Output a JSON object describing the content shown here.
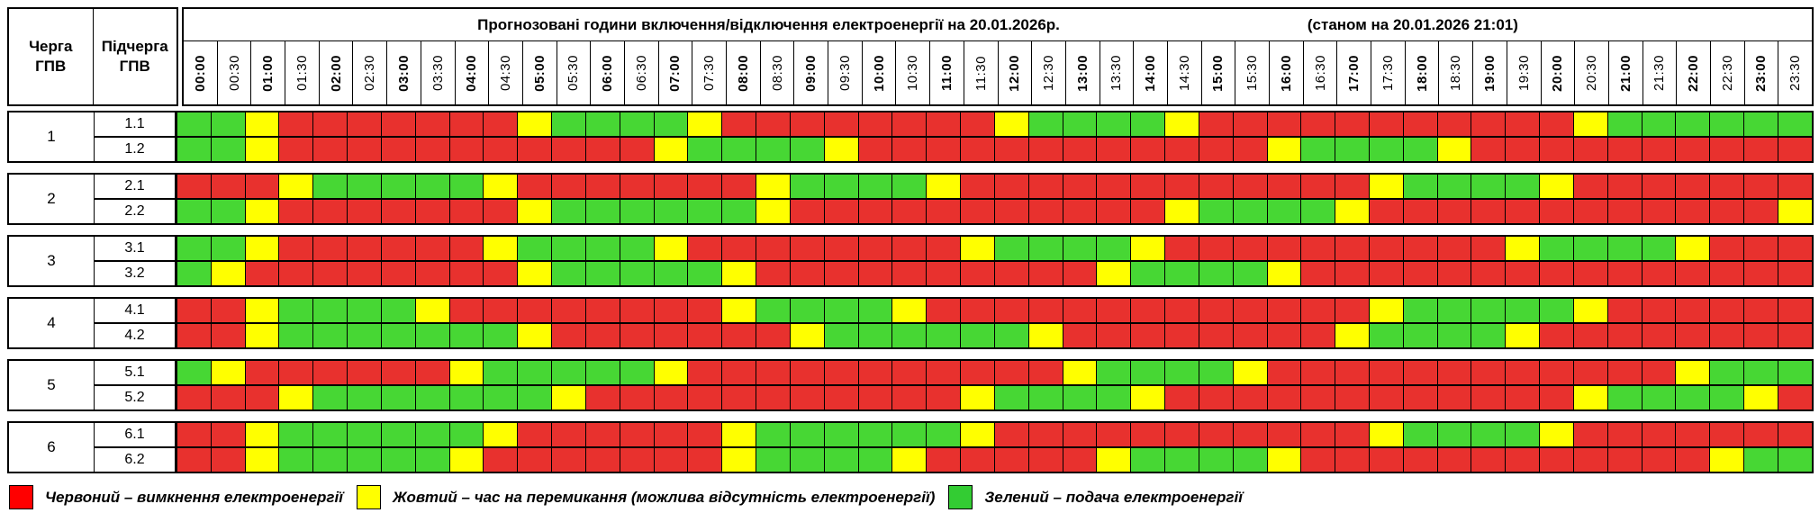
{
  "header": {
    "title": "Прогнозовані години включення/відключення електроенергії на 20.01.2026р.",
    "status_note": "(станом на 20.01.2026 21:01)",
    "corner_col1": "Черга\nГПВ",
    "corner_col2": "Підчерга\nГПВ"
  },
  "times": [
    "00:00",
    "00:30",
    "01:00",
    "01:30",
    "02:00",
    "02:30",
    "03:00",
    "03:30",
    "04:00",
    "04:30",
    "05:00",
    "05:30",
    "06:00",
    "06:30",
    "07:00",
    "07:30",
    "08:00",
    "08:30",
    "09:00",
    "09:30",
    "10:00",
    "10:30",
    "11:00",
    "11:30",
    "12:00",
    "12:30",
    "13:00",
    "13:30",
    "14:00",
    "14:30",
    "15:00",
    "15:30",
    "16:00",
    "16:30",
    "17:00",
    "17:30",
    "18:00",
    "18:30",
    "19:00",
    "19:30",
    "20:00",
    "20:30",
    "21:00",
    "21:30",
    "22:00",
    "22:30",
    "23:00",
    "23:30"
  ],
  "colors": {
    "R": "#e8312e",
    "Y": "#ffff00",
    "G": "#47d734"
  },
  "groups": [
    {
      "queue": "1",
      "rows": [
        {
          "label": "1.1",
          "slots": "GGYRRRRRRRYGGGGYRRRRRRRRYGGGGYRRRRRRRRRRRYGGGGGG"
        },
        {
          "label": "1.2",
          "slots": "GGYRRRRRRRRRRRYGGGGYRRRRRRRRRRRRYGGGGYRRRRRRRRRR"
        }
      ]
    },
    {
      "queue": "2",
      "rows": [
        {
          "label": "2.1",
          "slots": "RRRYGGGGGYRRRRRRRYGGGGYRRRRRRRRRRRRYGGGGYRRRRRRR"
        },
        {
          "label": "2.2",
          "slots": "GGYRRRRRRRYGGGGGGYRRRRRRRRRRRYGGGGYRRRRRRRRRRRRY"
        }
      ]
    },
    {
      "queue": "3",
      "rows": [
        {
          "label": "3.1",
          "slots": "GGYRRRRRRYGGGGYRRRRRRRRYGGGGYRRRRRRRRRRYGGGGYRRR"
        },
        {
          "label": "3.2",
          "slots": "GYRRRRRRRRYGGGGGYRRRRRRRRRRYGGGGYRRRRRRRRRRRRRRR"
        }
      ]
    },
    {
      "queue": "4",
      "rows": [
        {
          "label": "4.1",
          "slots": "RRYGGGGYRRRRRRRRYGGGGYRRRRRRRRRRRRRYGGGGGYRRRRRR"
        },
        {
          "label": "4.2",
          "slots": "RRYGGGGGGGYRRRRRRRYGGGGGGYRRRRRRRRYGGGGYRRRRRRRR"
        }
      ]
    },
    {
      "queue": "5",
      "rows": [
        {
          "label": "5.1",
          "slots": "GYRRRRRRYGGGGGYRRRRRRRRRRRYGGGGYRRRRRRRRRRRRYGGG"
        },
        {
          "label": "5.2",
          "slots": "RRRYGGGGGGGYRRRRRRRRRRRYGGGGYRRRRRRRRRRRRYGGGGYR"
        }
      ]
    },
    {
      "queue": "6",
      "rows": [
        {
          "label": "6.1",
          "slots": "RRYGGGGGGYRRRRRRYGGGGGGYRRRRRRRRRRRYGGGGYRRRRRRR"
        },
        {
          "label": "6.2",
          "slots": "RRYGGGGGYRRRRRRRYGGGGYRRRRRYGGGGYRRRRRRRRRRRRYGG"
        }
      ]
    }
  ],
  "legend": [
    {
      "key": "R",
      "color": "#ff0000",
      "label": "Червоний – вимкнення електроенергії"
    },
    {
      "key": "Y",
      "color": "#ffff00",
      "label": "Жовтий – час на перемикання (можлива відсутність електроенергії)"
    },
    {
      "key": "G",
      "color": "#33cc33",
      "label": "Зелений – подача електроенергії"
    }
  ],
  "chart_data": {
    "type": "heatmap",
    "title": "Прогнозовані години включення/відключення електроенергії на 20.01.2026р. (станом на 20.01.2026 21:01)",
    "x_labels": [
      "00:00",
      "00:30",
      "01:00",
      "01:30",
      "02:00",
      "02:30",
      "03:00",
      "03:30",
      "04:00",
      "04:30",
      "05:00",
      "05:30",
      "06:00",
      "06:30",
      "07:00",
      "07:30",
      "08:00",
      "08:30",
      "09:00",
      "09:30",
      "10:00",
      "10:30",
      "11:00",
      "11:30",
      "12:00",
      "12:30",
      "13:00",
      "13:30",
      "14:00",
      "14:30",
      "15:00",
      "15:30",
      "16:00",
      "16:30",
      "17:00",
      "17:30",
      "18:00",
      "18:30",
      "19:00",
      "19:30",
      "20:00",
      "20:30",
      "21:00",
      "21:30",
      "22:00",
      "22:30",
      "23:00",
      "23:30"
    ],
    "y_labels": [
      "1.1",
      "1.2",
      "2.1",
      "2.2",
      "3.1",
      "3.2",
      "4.1",
      "4.2",
      "5.1",
      "5.2",
      "6.1",
      "6.2"
    ],
    "value_legend": {
      "R": "вимкнення електроенергії",
      "Y": "час на перемикання (можлива відсутність електроенергії)",
      "G": "подача електроенергії"
    },
    "series": [
      {
        "name": "1.1",
        "values": "GGYRRRRRRRYGGGGYRRRRRRRRYGGGGYRRRRRRRRRRRYGGGGGG"
      },
      {
        "name": "1.2",
        "values": "GGYRRRRRRRRRRRYGGGGYRRRRRRRRRRRRYGGGGYRRRRRRRRRR"
      },
      {
        "name": "2.1",
        "values": "RRRYGGGGGYRRRRRRRYGGGGYRRRRRRRRRRRRYGGGGYRRRRRRR"
      },
      {
        "name": "2.2",
        "values": "GGYRRRRRRRYGGGGGGYRRRRRRRRRRRYGGGGYRRRRRRRRRRRRY"
      },
      {
        "name": "3.1",
        "values": "GGYRRRRRRYGGGGYRRRRRRRRYGGGGYRRRRRRRRRRYGGGGYRRR"
      },
      {
        "name": "3.2",
        "values": "GYRRRRRRRRYGGGGGYRRRRRRRRRRYGGGGYRRRRRRRRRRRRRRR"
      },
      {
        "name": "4.1",
        "values": "RRYGGGGYRRRRRRRRYGGGGYRRRRRRRRRRRRRYGGGGGYRRRRRR"
      },
      {
        "name": "4.2",
        "values": "RRYGGGGGGGYRRRRRRRYGGGGGGYRRRRRRRRYGGGGYRRRRRRRR"
      },
      {
        "name": "5.1",
        "values": "GYRRRRRRYGGGGGYRRRRRRRRRRRYGGGGYRRRRRRRRRRRRYGGG"
      },
      {
        "name": "5.2",
        "values": "RRRYGGGGGGGYRRRRRRRRRRRYGGGGYRRRRRRRRRRRRYGGGGYR"
      },
      {
        "name": "6.1",
        "values": "RRYGGGGGGYRRRRRRYGGGGGGYRRRRRRRRRRRYGGGGYRRRRRRR"
      },
      {
        "name": "6.2",
        "values": "RRYGGGGGYRRRRRRRYGGGGYRRRRRYGGGGYRRRRRRRRRRRRYGG"
      }
    ]
  }
}
